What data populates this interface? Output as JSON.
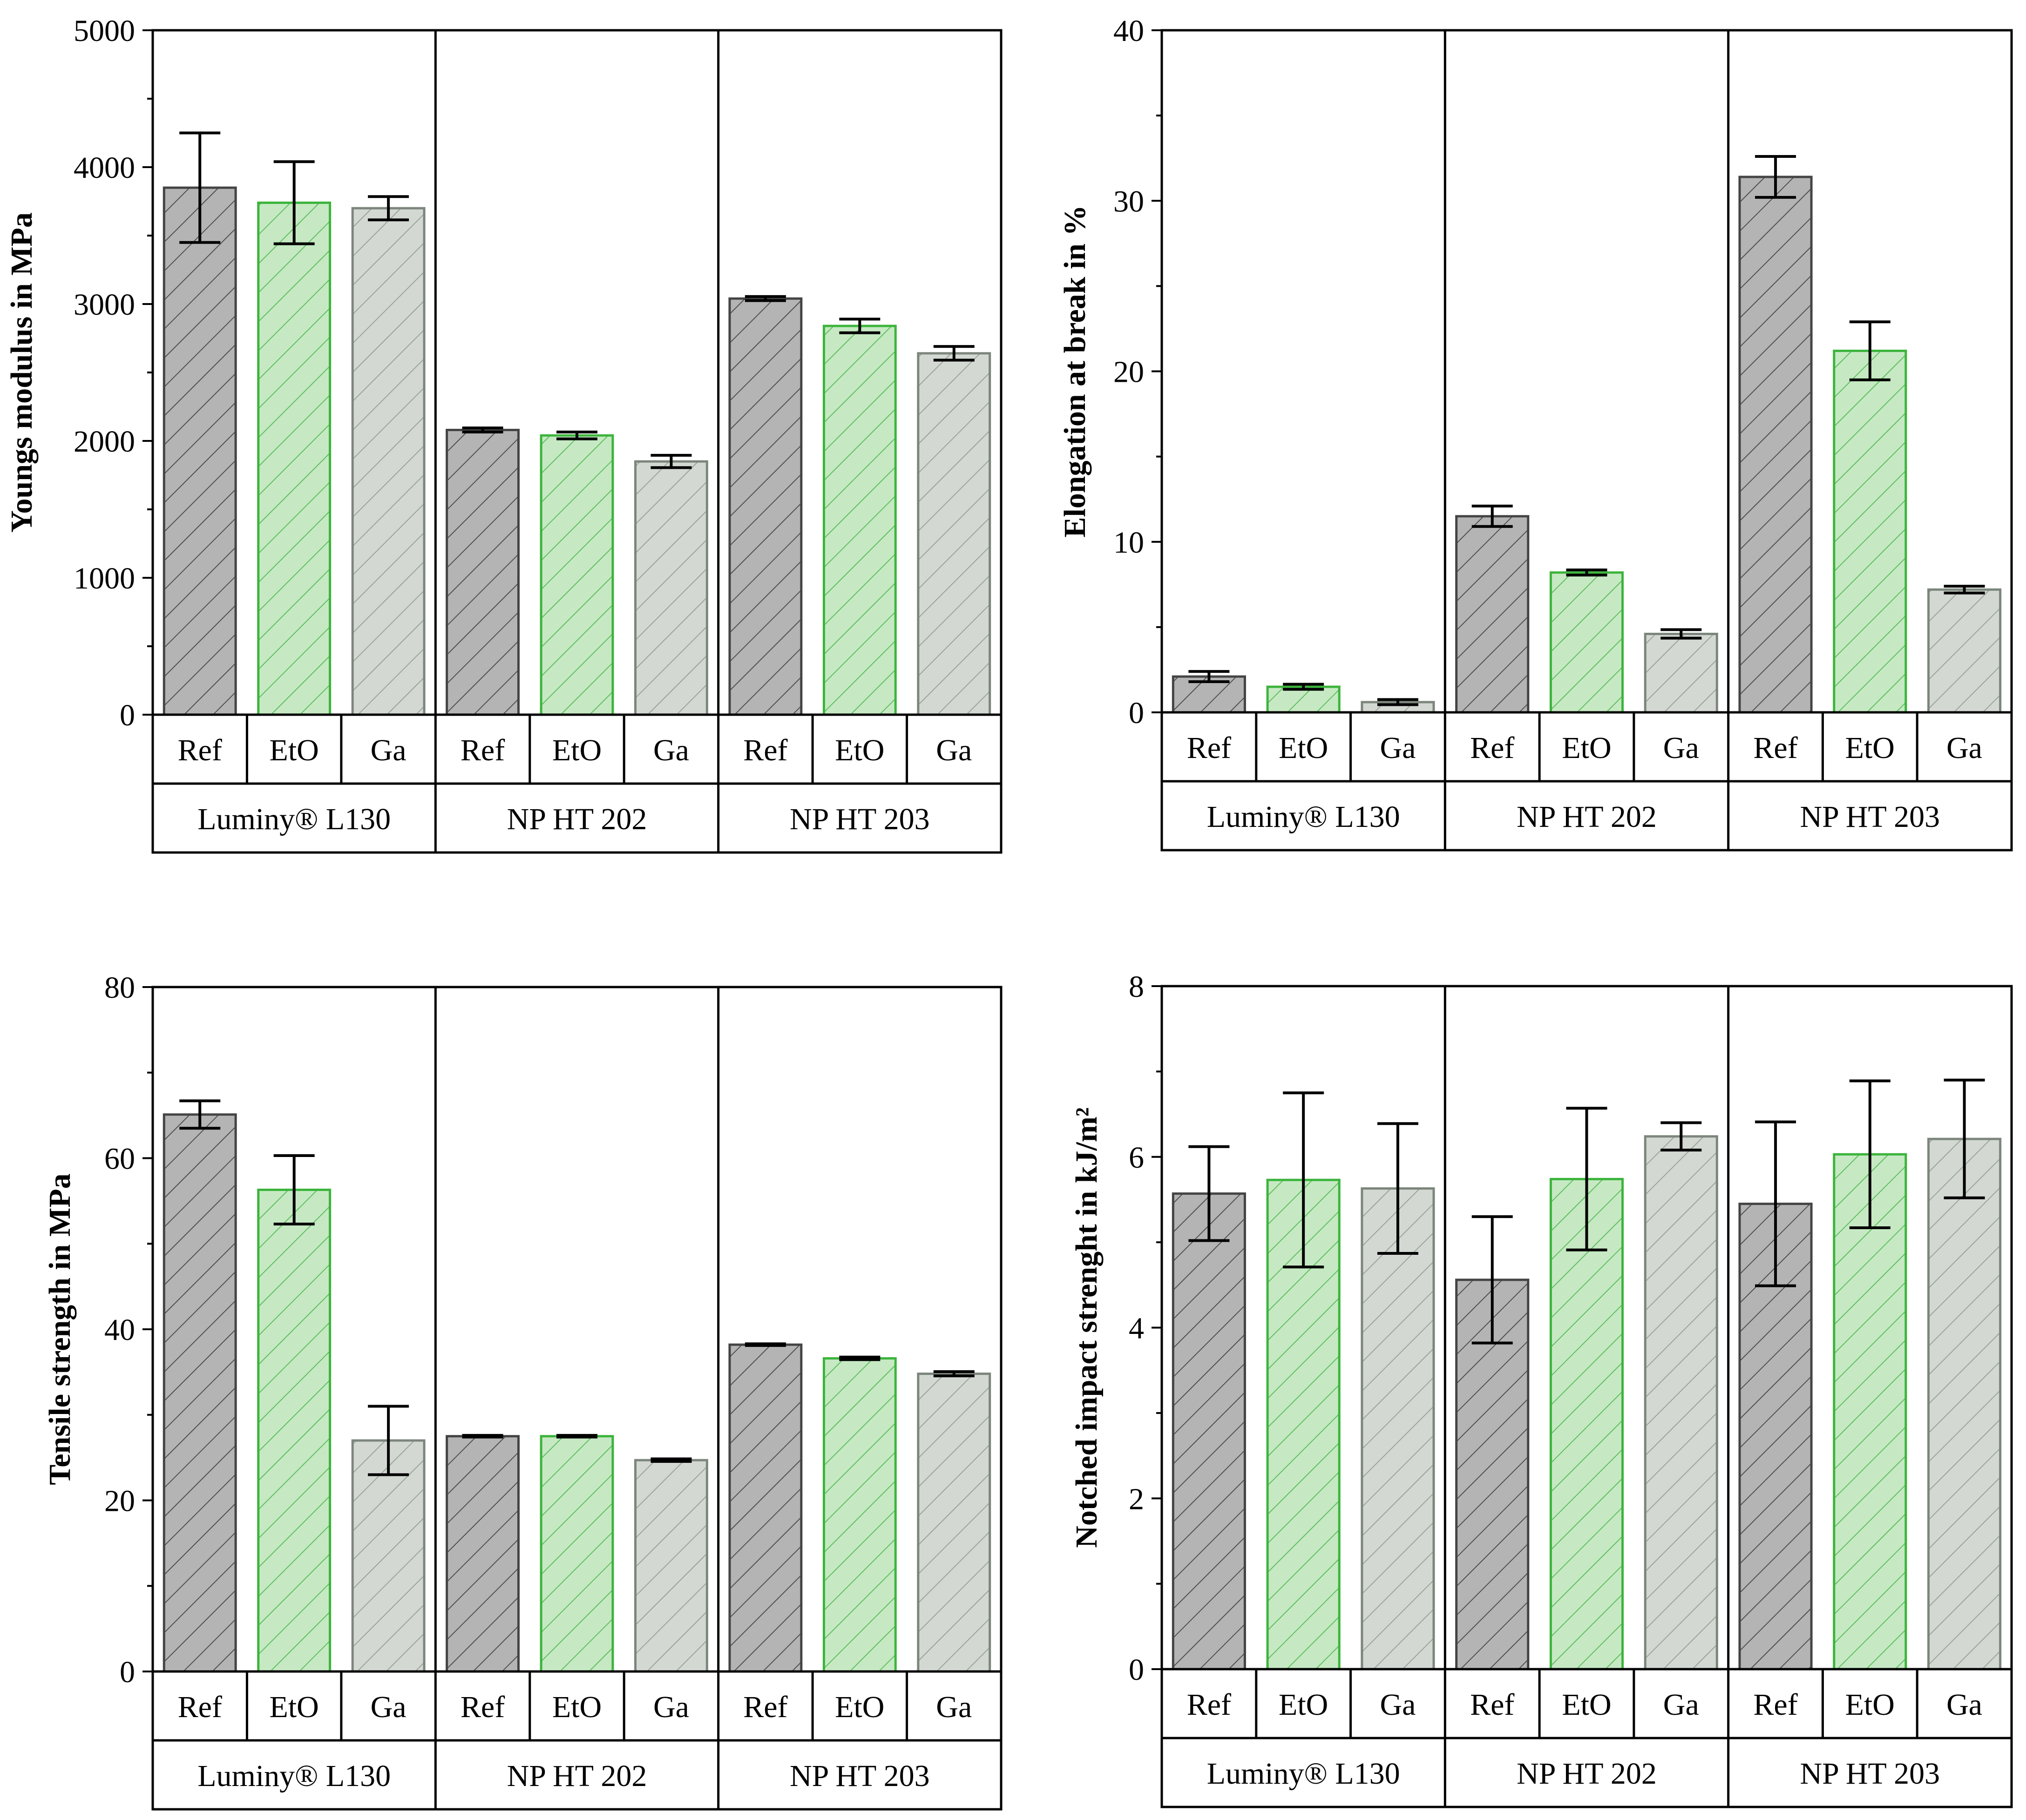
{
  "colors": {
    "Ref": {
      "fill": "#b4b4b4",
      "stroke": "#444444",
      "hatch": "#505050"
    },
    "EtO": {
      "fill": "#c6e9c3",
      "stroke": "#3cb43c",
      "hatch": "#5fbf5f"
    },
    "Ga": {
      "fill": "#d3d8d3",
      "stroke": "#7c867c",
      "hatch": "#9aa49a"
    }
  },
  "chart_data": [
    {
      "type": "bar",
      "ylabel": "Youngs modulus in MPa",
      "ylim": [
        0,
        5000
      ],
      "yticks": [
        0,
        1000,
        2000,
        3000,
        4000,
        5000
      ],
      "yminor": 500,
      "groups": [
        "Luminy® L130",
        "NP HT 202",
        "NP HT 203"
      ],
      "subcategories": [
        "Ref",
        "EtO",
        "Ga"
      ],
      "values": [
        [
          3850,
          3740,
          3700
        ],
        [
          2080,
          2040,
          1850
        ],
        [
          3040,
          2840,
          2640
        ]
      ],
      "errors": [
        [
          400,
          300,
          85
        ],
        [
          15,
          25,
          45
        ],
        [
          15,
          50,
          50
        ]
      ]
    },
    {
      "type": "bar",
      "ylabel": "Elongation at break in %",
      "ylim": [
        0,
        40
      ],
      "yticks": [
        0,
        10,
        20,
        30,
        40
      ],
      "yminor": 5,
      "groups": [
        "Luminy® L130",
        "NP HT 202",
        "NP HT 203"
      ],
      "subcategories": [
        "Ref",
        "EtO",
        "Ga"
      ],
      "values": [
        [
          2.1,
          1.5,
          0.6
        ],
        [
          11.5,
          8.2,
          4.6
        ],
        [
          31.4,
          21.2,
          7.2
        ]
      ],
      "errors": [
        [
          0.3,
          0.15,
          0.15
        ],
        [
          0.6,
          0.15,
          0.25
        ],
        [
          1.2,
          1.7,
          0.2
        ]
      ]
    },
    {
      "type": "bar",
      "ylabel": "Tensile strength in MPa",
      "ylim": [
        0,
        80
      ],
      "yticks": [
        0,
        20,
        40,
        60,
        80
      ],
      "yminor": 10,
      "groups": [
        "Luminy® L130",
        "NP HT 202",
        "NP HT 203"
      ],
      "subcategories": [
        "Ref",
        "EtO",
        "Ga"
      ],
      "values": [
        [
          65.1,
          56.3,
          27.0
        ],
        [
          27.5,
          27.5,
          24.7
        ],
        [
          38.2,
          36.6,
          34.8
        ]
      ],
      "errors": [
        [
          1.6,
          4.0,
          4.0
        ],
        [
          0.1,
          0.1,
          0.15
        ],
        [
          0.1,
          0.15,
          0.25
        ]
      ]
    },
    {
      "type": "bar",
      "ylabel": "Notched impact strenght in kJ/m²",
      "ylim": [
        0,
        8
      ],
      "yticks": [
        0,
        2,
        4,
        6,
        8
      ],
      "yminor": 1,
      "groups": [
        "Luminy® L130",
        "NP HT 202",
        "NP HT 203"
      ],
      "subcategories": [
        "Ref",
        "EtO",
        "Ga"
      ],
      "values": [
        [
          5.57,
          5.73,
          5.63
        ],
        [
          4.56,
          5.74,
          6.24
        ],
        [
          5.45,
          6.03,
          6.21
        ]
      ],
      "errors": [
        [
          0.55,
          1.02,
          0.76
        ],
        [
          0.74,
          0.83,
          0.16
        ],
        [
          0.96,
          0.86,
          0.69
        ]
      ]
    }
  ]
}
